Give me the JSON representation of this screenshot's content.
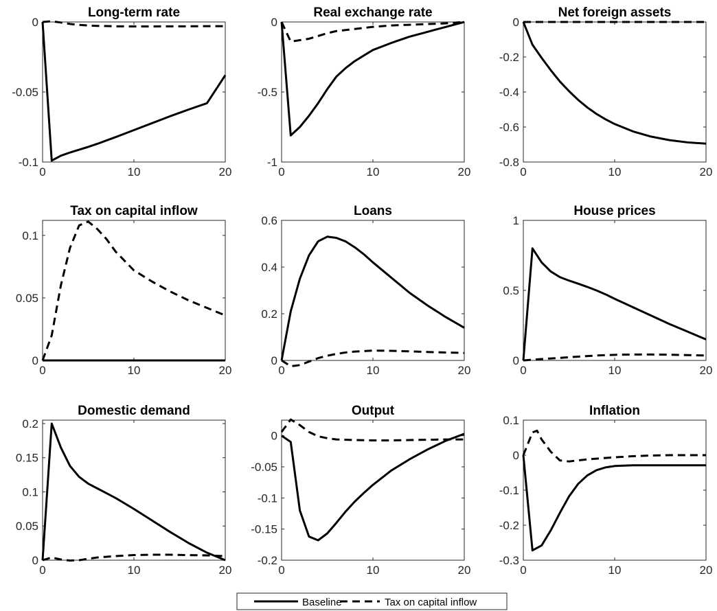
{
  "chart_data": [
    {
      "type": "line",
      "title": "Long-term rate",
      "xlim": [
        0,
        20
      ],
      "ylim": [
        -0.1,
        0
      ],
      "xticks": [
        "0",
        "10",
        "20"
      ],
      "yticks": [
        "-0.1",
        "-0.05",
        "0"
      ],
      "series": [
        {
          "name": "Baseline",
          "style": "solid",
          "x": [
            0,
            1,
            2,
            3,
            4,
            5,
            6,
            7,
            8,
            9,
            10,
            12,
            14,
            16,
            18,
            20
          ],
          "y": [
            0,
            -0.099,
            -0.0955,
            -0.0932,
            -0.0912,
            -0.0892,
            -0.087,
            -0.0846,
            -0.0822,
            -0.0797,
            -0.0772,
            -0.0722,
            -0.0672,
            -0.0625,
            -0.058,
            -0.038
          ]
        },
        {
          "name": "Tax on capital inflow",
          "style": "dashed",
          "x": [
            0,
            1,
            2,
            3,
            4,
            5,
            6,
            8,
            10,
            12,
            14,
            16,
            18,
            20
          ],
          "y": [
            0,
            0.0005,
            -0.0004,
            -0.0014,
            -0.0021,
            -0.0025,
            -0.0028,
            -0.0031,
            -0.0032,
            -0.0032,
            -0.0031,
            -0.0031,
            -0.003,
            -0.003
          ]
        }
      ]
    },
    {
      "type": "line",
      "title": "Real exchange rate",
      "xlim": [
        0,
        20
      ],
      "ylim": [
        -1,
        0
      ],
      "xticks": [
        "0",
        "10",
        "20"
      ],
      "yticks": [
        "-1",
        "-0.5",
        "0"
      ],
      "series": [
        {
          "name": "Baseline",
          "style": "solid",
          "x": [
            0,
            1,
            2,
            3,
            4,
            5,
            6,
            7,
            8,
            9,
            10,
            12,
            14,
            16,
            18,
            20
          ],
          "y": [
            0,
            -0.81,
            -0.75,
            -0.67,
            -0.58,
            -0.48,
            -0.39,
            -0.33,
            -0.28,
            -0.24,
            -0.2,
            -0.15,
            -0.105,
            -0.07,
            -0.035,
            0
          ]
        },
        {
          "name": "Tax on capital inflow",
          "style": "dashed",
          "x": [
            0,
            1,
            2,
            3,
            4,
            5,
            6,
            8,
            10,
            12,
            14,
            16,
            18,
            20
          ],
          "y": [
            0,
            -0.14,
            -0.13,
            -0.12,
            -0.1,
            -0.08,
            -0.065,
            -0.05,
            -0.035,
            -0.025,
            -0.02,
            -0.015,
            -0.01,
            0
          ]
        }
      ]
    },
    {
      "type": "line",
      "title": "Net foreign assets",
      "xlim": [
        0,
        20
      ],
      "ylim": [
        -0.8,
        0
      ],
      "xticks": [
        "0",
        "10",
        "20"
      ],
      "yticks": [
        "-0.8",
        "-0.6",
        "-0.4",
        "-0.2",
        "0"
      ],
      "series": [
        {
          "name": "Baseline",
          "style": "solid",
          "x": [
            0,
            1,
            2,
            3,
            4,
            5,
            6,
            7,
            8,
            9,
            10,
            12,
            14,
            16,
            18,
            20
          ],
          "y": [
            0,
            -0.13,
            -0.205,
            -0.275,
            -0.34,
            -0.395,
            -0.445,
            -0.488,
            -0.525,
            -0.556,
            -0.583,
            -0.625,
            -0.655,
            -0.675,
            -0.688,
            -0.695
          ]
        },
        {
          "name": "Tax on capital inflow",
          "style": "dashed",
          "x": [
            0,
            20
          ],
          "y": [
            0,
            0
          ]
        }
      ]
    },
    {
      "type": "line",
      "title": "Tax on capital inflow",
      "xlim": [
        0,
        20
      ],
      "ylim": [
        0,
        0.112
      ],
      "xticks": [
        "0",
        "10",
        "20"
      ],
      "yticks": [
        "0",
        "0.05",
        "0.1"
      ],
      "series": [
        {
          "name": "Baseline",
          "style": "solid",
          "x": [
            0,
            20
          ],
          "y": [
            0,
            0
          ]
        },
        {
          "name": "Tax on capital inflow",
          "style": "dashed",
          "x": [
            0,
            1,
            2,
            3,
            4,
            5,
            6,
            7,
            8,
            10,
            12,
            14,
            16,
            18,
            20
          ],
          "y": [
            0,
            0.02,
            0.06,
            0.09,
            0.108,
            0.111,
            0.105,
            0.097,
            0.087,
            0.072,
            0.063,
            0.055,
            0.048,
            0.042,
            0.036
          ]
        }
      ]
    },
    {
      "type": "line",
      "title": "Loans",
      "xlim": [
        0,
        20
      ],
      "ylim": [
        0,
        0.6
      ],
      "xticks": [
        "0",
        "10",
        "20"
      ],
      "yticks": [
        "0",
        "0.2",
        "0.4",
        "0.6"
      ],
      "series": [
        {
          "name": "Baseline",
          "style": "solid",
          "x": [
            0,
            1,
            2,
            3,
            4,
            5,
            6,
            7,
            8,
            9,
            10,
            12,
            14,
            16,
            18,
            20
          ],
          "y": [
            0,
            0.21,
            0.35,
            0.45,
            0.51,
            0.53,
            0.525,
            0.51,
            0.485,
            0.455,
            0.42,
            0.355,
            0.29,
            0.235,
            0.185,
            0.14
          ]
        },
        {
          "name": "Tax on capital inflow",
          "style": "dashed",
          "x": [
            0,
            1,
            2,
            3,
            4,
            5,
            6,
            7,
            8,
            10,
            12,
            14,
            16,
            18,
            20
          ],
          "y": [
            0,
            -0.025,
            -0.02,
            -0.005,
            0.01,
            0.02,
            0.028,
            0.034,
            0.038,
            0.042,
            0.041,
            0.039,
            0.036,
            0.034,
            0.032
          ]
        }
      ]
    },
    {
      "type": "line",
      "title": "House prices",
      "xlim": [
        0,
        20
      ],
      "ylim": [
        0,
        1
      ],
      "xticks": [
        "0",
        "10",
        "20"
      ],
      "yticks": [
        "0",
        "0.5",
        "1"
      ],
      "series": [
        {
          "name": "Baseline",
          "style": "solid",
          "x": [
            0,
            1,
            2,
            3,
            4,
            5,
            6,
            7,
            8,
            9,
            10,
            12,
            14,
            16,
            18,
            20
          ],
          "y": [
            0,
            0.8,
            0.7,
            0.635,
            0.595,
            0.57,
            0.548,
            0.525,
            0.5,
            0.472,
            0.44,
            0.38,
            0.32,
            0.26,
            0.205,
            0.15
          ]
        },
        {
          "name": "Tax on capital inflow",
          "style": "dashed",
          "x": [
            0,
            1,
            2,
            4,
            6,
            8,
            10,
            12,
            14,
            16,
            18,
            20
          ],
          "y": [
            0,
            0.005,
            0.01,
            0.018,
            0.027,
            0.035,
            0.04,
            0.042,
            0.042,
            0.041,
            0.038,
            0.035
          ]
        }
      ]
    },
    {
      "type": "line",
      "title": "Domestic demand",
      "xlim": [
        0,
        20
      ],
      "ylim": [
        0,
        0.205
      ],
      "xticks": [
        "0",
        "10",
        "20"
      ],
      "yticks": [
        "0",
        "0.05",
        "0.1",
        "0.15",
        "0.2"
      ],
      "series": [
        {
          "name": "Baseline",
          "style": "solid",
          "x": [
            0,
            1,
            2,
            3,
            4,
            5,
            6,
            7,
            8,
            9,
            10,
            12,
            14,
            16,
            18,
            20
          ],
          "y": [
            0,
            0.2,
            0.165,
            0.138,
            0.122,
            0.112,
            0.105,
            0.098,
            0.091,
            0.083,
            0.075,
            0.058,
            0.041,
            0.025,
            0.011,
            0
          ]
        },
        {
          "name": "Tax on capital inflow",
          "style": "dashed",
          "x": [
            0,
            1,
            2,
            3,
            4,
            5,
            6,
            8,
            10,
            12,
            14,
            16,
            18,
            20
          ],
          "y": [
            0,
            0.004,
            0.001,
            -0.0005,
            0,
            0.002,
            0.004,
            0.006,
            0.0075,
            0.008,
            0.008,
            0.0075,
            0.007,
            0.006
          ]
        }
      ]
    },
    {
      "type": "line",
      "title": "Output",
      "xlim": [
        0,
        20
      ],
      "ylim": [
        -0.2,
        0.025
      ],
      "xticks": [
        "0",
        "10",
        "20"
      ],
      "yticks": [
        "-0.2",
        "-0.15",
        "-0.1",
        "-0.05",
        "0"
      ],
      "series": [
        {
          "name": "Baseline",
          "style": "solid",
          "x": [
            0,
            1,
            2,
            3,
            4,
            5,
            6,
            7,
            8,
            9,
            10,
            12,
            14,
            16,
            18,
            20
          ],
          "y": [
            0,
            -0.01,
            -0.12,
            -0.162,
            -0.168,
            -0.157,
            -0.14,
            -0.122,
            -0.106,
            -0.092,
            -0.079,
            -0.056,
            -0.038,
            -0.022,
            -0.008,
            0.003
          ]
        },
        {
          "name": "Tax on capital inflow",
          "style": "dashed",
          "x": [
            0,
            1,
            2,
            3,
            4,
            5,
            6,
            8,
            10,
            12,
            14,
            16,
            18,
            20
          ],
          "y": [
            0.006,
            0.026,
            0.017,
            0.006,
            -0.001,
            -0.004,
            -0.006,
            -0.007,
            -0.0075,
            -0.0075,
            -0.007,
            -0.0065,
            -0.006,
            -0.006
          ]
        }
      ]
    },
    {
      "type": "line",
      "title": "Inflation",
      "xlim": [
        0,
        20
      ],
      "ylim": [
        -0.3,
        0.1
      ],
      "xticks": [
        "0",
        "10",
        "20"
      ],
      "yticks": [
        "-0.3",
        "-0.2",
        "-0.1",
        "0",
        "0.1"
      ],
      "series": [
        {
          "name": "Baseline",
          "style": "solid",
          "x": [
            0,
            1,
            2,
            3,
            4,
            5,
            6,
            7,
            8,
            9,
            10,
            12,
            14,
            16,
            18,
            20
          ],
          "y": [
            0,
            -0.272,
            -0.258,
            -0.215,
            -0.165,
            -0.118,
            -0.082,
            -0.058,
            -0.043,
            -0.035,
            -0.031,
            -0.029,
            -0.029,
            -0.029,
            -0.029,
            -0.029
          ]
        },
        {
          "name": "Tax on capital inflow",
          "style": "dashed",
          "x": [
            0,
            1,
            1.5,
            2,
            3,
            4,
            5,
            6,
            7,
            8,
            10,
            12,
            14,
            16,
            18,
            20
          ],
          "y": [
            0,
            0.065,
            0.07,
            0.045,
            0.01,
            -0.015,
            -0.018,
            -0.015,
            -0.012,
            -0.01,
            -0.006,
            -0.003,
            -0.001,
            0,
            0,
            0
          ]
        }
      ]
    }
  ],
  "legend": {
    "placement": "bottom-center",
    "entries": [
      {
        "label": "Baseline",
        "style": "solid"
      },
      {
        "label": "Tax on capital inflow",
        "style": "dashed"
      }
    ]
  },
  "colors": {
    "line": "#000000",
    "axes": "#262626",
    "background": "#ffffff"
  }
}
